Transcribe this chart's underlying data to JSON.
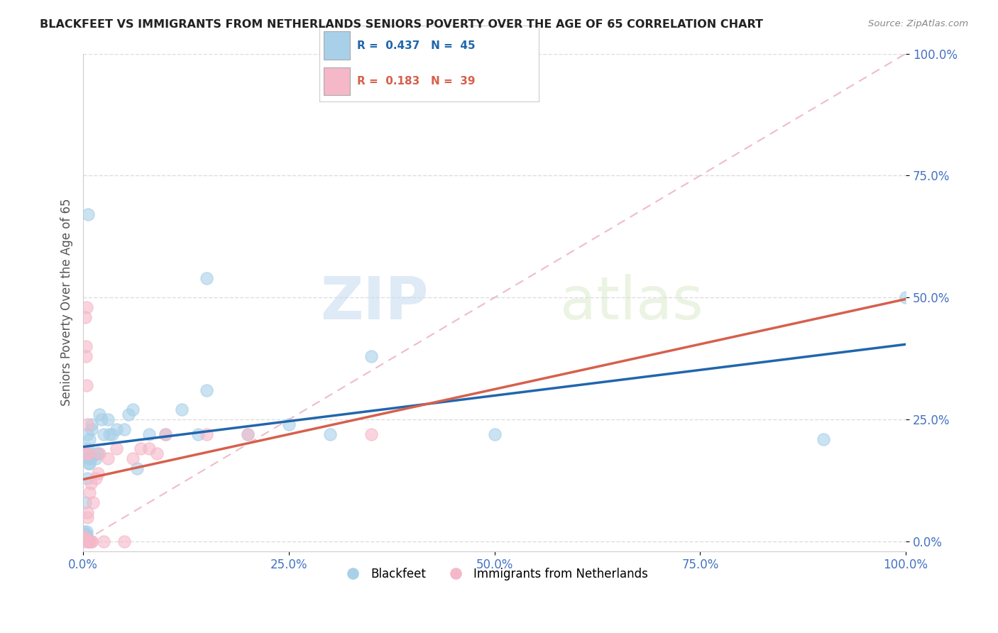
{
  "title": "BLACKFEET VS IMMIGRANTS FROM NETHERLANDS SENIORS POVERTY OVER THE AGE OF 65 CORRELATION CHART",
  "source": "Source: ZipAtlas.com",
  "ylabel": "Seniors Poverty Over the Age of 65",
  "watermark_zip": "ZIP",
  "watermark_atlas": "atlas",
  "legend1_R": "0.437",
  "legend1_N": "45",
  "legend2_R": "0.183",
  "legend2_N": "39",
  "blue_color": "#A8D0E8",
  "pink_color": "#F5B8C8",
  "blue_line_color": "#2166AC",
  "pink_line_color": "#D6604D",
  "dash_line_color": "#F5B8C8",
  "blue_scatter": [
    [
      0.001,
      0.02
    ],
    [
      0.002,
      0.015
    ],
    [
      0.002,
      0.08
    ],
    [
      0.003,
      0.01
    ],
    [
      0.004,
      0.02
    ],
    [
      0.004,
      0.015
    ],
    [
      0.005,
      0.19
    ],
    [
      0.005,
      0.22
    ],
    [
      0.005,
      0.13
    ],
    [
      0.006,
      0.18
    ],
    [
      0.006,
      0.67
    ],
    [
      0.007,
      0.17
    ],
    [
      0.007,
      0.16
    ],
    [
      0.008,
      0.16
    ],
    [
      0.008,
      0.21
    ],
    [
      0.009,
      0.17
    ],
    [
      0.01,
      0.23
    ],
    [
      0.01,
      0.24
    ],
    [
      0.015,
      0.17
    ],
    [
      0.016,
      0.18
    ],
    [
      0.018,
      0.18
    ],
    [
      0.02,
      0.26
    ],
    [
      0.022,
      0.25
    ],
    [
      0.025,
      0.22
    ],
    [
      0.03,
      0.25
    ],
    [
      0.032,
      0.22
    ],
    [
      0.035,
      0.22
    ],
    [
      0.04,
      0.23
    ],
    [
      0.05,
      0.23
    ],
    [
      0.055,
      0.26
    ],
    [
      0.06,
      0.27
    ],
    [
      0.065,
      0.15
    ],
    [
      0.08,
      0.22
    ],
    [
      0.1,
      0.22
    ],
    [
      0.12,
      0.27
    ],
    [
      0.14,
      0.22
    ],
    [
      0.15,
      0.31
    ],
    [
      0.15,
      0.54
    ],
    [
      0.2,
      0.22
    ],
    [
      0.25,
      0.24
    ],
    [
      0.3,
      0.22
    ],
    [
      0.35,
      0.38
    ],
    [
      0.5,
      0.22
    ],
    [
      0.9,
      0.21
    ],
    [
      1.0,
      0.5
    ]
  ],
  "pink_scatter": [
    [
      0.001,
      0.005
    ],
    [
      0.001,
      0.01
    ],
    [
      0.001,
      0.005
    ],
    [
      0.002,
      0.0
    ],
    [
      0.002,
      0.005
    ],
    [
      0.002,
      0.46
    ],
    [
      0.003,
      0.38
    ],
    [
      0.003,
      0.4
    ],
    [
      0.004,
      0.32
    ],
    [
      0.004,
      0.48
    ],
    [
      0.005,
      0.05
    ],
    [
      0.005,
      0.06
    ],
    [
      0.005,
      0.18
    ],
    [
      0.005,
      0.24
    ],
    [
      0.006,
      0.18
    ],
    [
      0.006,
      0.0
    ],
    [
      0.007,
      0.0
    ],
    [
      0.007,
      0.0
    ],
    [
      0.008,
      0.0
    ],
    [
      0.008,
      0.1
    ],
    [
      0.009,
      0.12
    ],
    [
      0.01,
      0.0
    ],
    [
      0.01,
      0.0
    ],
    [
      0.012,
      0.08
    ],
    [
      0.015,
      0.13
    ],
    [
      0.018,
      0.14
    ],
    [
      0.02,
      0.18
    ],
    [
      0.025,
      0.0
    ],
    [
      0.03,
      0.17
    ],
    [
      0.04,
      0.19
    ],
    [
      0.05,
      0.0
    ],
    [
      0.06,
      0.17
    ],
    [
      0.07,
      0.19
    ],
    [
      0.08,
      0.19
    ],
    [
      0.09,
      0.18
    ],
    [
      0.1,
      0.22
    ],
    [
      0.15,
      0.22
    ],
    [
      0.2,
      0.22
    ],
    [
      0.35,
      0.22
    ]
  ],
  "xlim": [
    0.0,
    1.0
  ],
  "ylim": [
    -0.02,
    1.0
  ],
  "xticks": [
    0.0,
    0.25,
    0.5,
    0.75,
    1.0
  ],
  "yticks": [
    0.0,
    0.25,
    0.5,
    0.75,
    1.0
  ],
  "xticklabels": [
    "0.0%",
    "25.0%",
    "50.0%",
    "75.0%",
    "100.0%"
  ],
  "yticklabels": [
    "0.0%",
    "25.0%",
    "50.0%",
    "75.0%",
    "100.0%"
  ],
  "grid_color": "#DDDDDD",
  "bg_color": "#FFFFFF",
  "blue_legend_label": "Blackfeet",
  "pink_legend_label": "Immigrants from Netherlands",
  "tick_color": "#4472C4",
  "title_color": "#222222",
  "source_color": "#888888"
}
